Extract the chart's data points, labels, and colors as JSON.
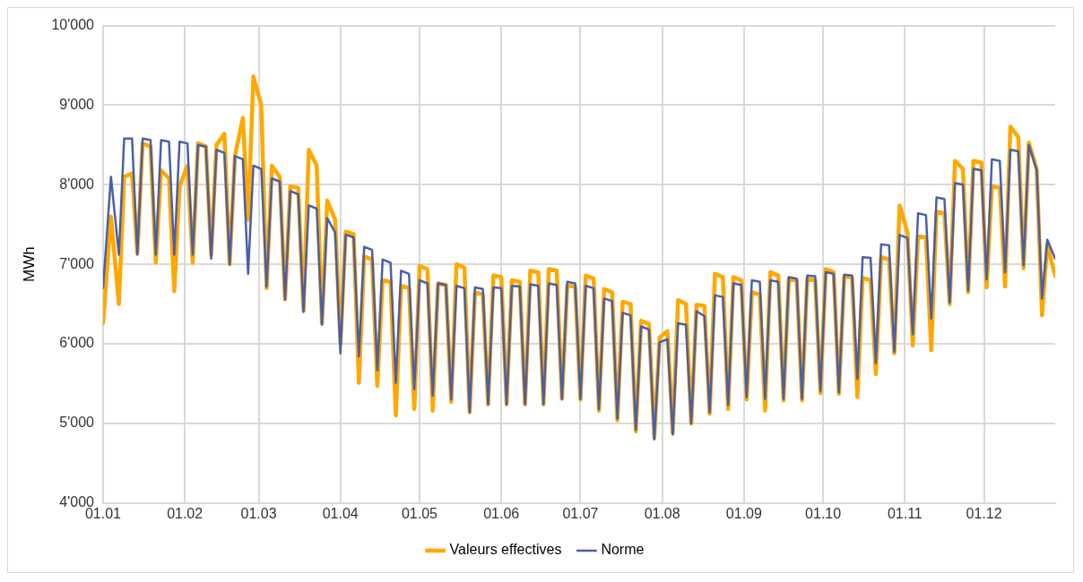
{
  "chart_data": {
    "type": "line",
    "ylabel": "MWh",
    "x": [
      "--01-01",
      "--01-04",
      "--01-07",
      "--01-09",
      "--01-12",
      "--01-14",
      "--01-16",
      "--01-19",
      "--01-21",
      "--01-23",
      "--01-26",
      "--01-28",
      "--01-30",
      "--02-02",
      "--02-04",
      "--02-06",
      "--02-09",
      "--02-11",
      "--02-13",
      "--02-16",
      "--02-18",
      "--02-20",
      "--02-23",
      "--02-25",
      "--02-27",
      "--03-02",
      "--03-04",
      "--03-06",
      "--03-09",
      "--03-11",
      "--03-13",
      "--03-16",
      "--03-18",
      "--03-20",
      "--03-23",
      "--03-25",
      "--03-27",
      "--03-30",
      "--04-01",
      "--04-03",
      "--04-06",
      "--04-08",
      "--04-10",
      "--04-13",
      "--04-15",
      "--04-17",
      "--04-20",
      "--04-22",
      "--04-24",
      "--04-27",
      "--04-29",
      "--05-01",
      "--05-04",
      "--05-06",
      "--05-08",
      "--05-11",
      "--05-13",
      "--05-15",
      "--05-18",
      "--05-20",
      "--05-22",
      "--05-25",
      "--05-27",
      "--05-29",
      "--06-01",
      "--06-03",
      "--06-05",
      "--06-08",
      "--06-10",
      "--06-12",
      "--06-15",
      "--06-17",
      "--06-19",
      "--06-22",
      "--06-24",
      "--06-26",
      "--06-29",
      "--07-01",
      "--07-03",
      "--07-06",
      "--07-08",
      "--07-10",
      "--07-13",
      "--07-15",
      "--07-17",
      "--07-20",
      "--07-22",
      "--07-24",
      "--07-27",
      "--07-29",
      "--07-31",
      "--08-03",
      "--08-05",
      "--08-07",
      "--08-10",
      "--08-12",
      "--08-14",
      "--08-17",
      "--08-19",
      "--08-21",
      "--08-24",
      "--08-26",
      "--08-28",
      "--08-31",
      "--09-02",
      "--09-04",
      "--09-07",
      "--09-09",
      "--09-11",
      "--09-14",
      "--09-16",
      "--09-18",
      "--09-21",
      "--09-23",
      "--09-25",
      "--09-28",
      "--09-30",
      "--10-02",
      "--10-05",
      "--10-07",
      "--10-09",
      "--10-12",
      "--10-14",
      "--10-16",
      "--10-19",
      "--10-21",
      "--10-23",
      "--10-26",
      "--10-28",
      "--10-30",
      "--11-02",
      "--11-04",
      "--11-06",
      "--11-09",
      "--11-11",
      "--11-13",
      "--11-16",
      "--11-18",
      "--11-20",
      "--11-23",
      "--11-25",
      "--11-27",
      "--11-30",
      "--12-02",
      "--12-04",
      "--12-07",
      "--12-09",
      "--12-11",
      "--12-14",
      "--12-16",
      "--12-18",
      "--12-21",
      "--12-23",
      "--12-25",
      "--12-28"
    ],
    "series": [
      {
        "name": "Valeurs effectives",
        "color": "#ffa800",
        "values": [
          6260,
          7600,
          6500,
          8100,
          8140,
          7140,
          8520,
          8480,
          7020,
          8180,
          8080,
          6660,
          7980,
          8240,
          7020,
          8520,
          8480,
          7120,
          8500,
          8640,
          7000,
          8360,
          8840,
          7560,
          9360,
          9000,
          6700,
          8240,
          8100,
          6560,
          7980,
          7960,
          6420,
          8440,
          8240,
          6260,
          7800,
          7560,
          6000,
          7410,
          7380,
          5510,
          7100,
          7060,
          5470,
          6800,
          6780,
          5100,
          6730,
          6700,
          5180,
          6980,
          6940,
          5160,
          6760,
          6740,
          5270,
          7000,
          6960,
          5140,
          6650,
          6620,
          5240,
          6860,
          6840,
          5240,
          6800,
          6780,
          5240,
          6920,
          6900,
          5240,
          6940,
          6920,
          5310,
          6730,
          6720,
          5300,
          6860,
          6820,
          5160,
          6690,
          6650,
          5040,
          6530,
          6500,
          4900,
          6290,
          6250,
          4820,
          6080,
          6160,
          4880,
          6550,
          6500,
          5000,
          6490,
          6480,
          5120,
          6880,
          6840,
          5180,
          6840,
          6800,
          5300,
          6650,
          6620,
          5160,
          6900,
          6860,
          5290,
          6820,
          6800,
          5290,
          6820,
          6800,
          5380,
          6940,
          6900,
          5370,
          6850,
          6830,
          5330,
          6830,
          6800,
          5620,
          7090,
          7060,
          5880,
          7740,
          7400,
          5980,
          7350,
          7340,
          5920,
          7660,
          7640,
          6500,
          8300,
          8200,
          6650,
          8300,
          8280,
          6710,
          7980,
          7960,
          6720,
          8730,
          8600,
          6950,
          8530,
          8200,
          6360,
          7250,
          6850
        ]
      },
      {
        "name": "Norme",
        "color": "#4a5fa8",
        "values": [
          6700,
          8100,
          7120,
          8580,
          8580,
          7120,
          8580,
          8560,
          7120,
          8560,
          8540,
          7120,
          8540,
          8520,
          7120,
          8500,
          8480,
          7070,
          8440,
          8400,
          7000,
          8360,
          8320,
          6880,
          8240,
          8200,
          6720,
          8080,
          8040,
          6560,
          7920,
          7880,
          6400,
          7740,
          7700,
          6240,
          7580,
          7400,
          5880,
          7370,
          7340,
          5840,
          7220,
          7180,
          5670,
          7060,
          7020,
          5510,
          6920,
          6880,
          5430,
          6800,
          6760,
          5350,
          6760,
          6740,
          5300,
          6730,
          6700,
          5140,
          6710,
          6690,
          5240,
          6710,
          6700,
          5240,
          6730,
          6720,
          5240,
          6750,
          6730,
          5240,
          6760,
          6740,
          5310,
          6780,
          6760,
          5310,
          6730,
          6700,
          5180,
          6570,
          6540,
          5060,
          6390,
          6360,
          4920,
          6220,
          6180,
          4800,
          6020,
          6060,
          4860,
          6260,
          6240,
          5000,
          6410,
          6350,
          5140,
          6610,
          6590,
          5230,
          6760,
          6740,
          5330,
          6800,
          6780,
          5310,
          6800,
          6780,
          5310,
          6840,
          6820,
          5310,
          6860,
          6850,
          5410,
          6900,
          6880,
          5390,
          6870,
          6860,
          5560,
          7090,
          7080,
          5760,
          7250,
          7240,
          5900,
          7370,
          7330,
          6120,
          7640,
          7620,
          6320,
          7840,
          7820,
          6520,
          8020,
          8000,
          6670,
          8200,
          8180,
          6810,
          8320,
          8300,
          6900,
          8440,
          8420,
          6990,
          8500,
          8180,
          6570,
          7310,
          7070
        ]
      }
    ],
    "xlim": [
      "--01-01",
      "--12-28"
    ],
    "xticks": [
      {
        "value": "--01-01",
        "label": "01.01"
      },
      {
        "value": "--02-01",
        "label": "01.02"
      },
      {
        "value": "--03-01",
        "label": "01.03"
      },
      {
        "value": "--04-01",
        "label": "01.04"
      },
      {
        "value": "--05-01",
        "label": "01.05"
      },
      {
        "value": "--06-01",
        "label": "01.06"
      },
      {
        "value": "--07-01",
        "label": "01.07"
      },
      {
        "value": "--08-01",
        "label": "01.08"
      },
      {
        "value": "--09-01",
        "label": "01.09"
      },
      {
        "value": "--10-01",
        "label": "01.10"
      },
      {
        "value": "--11-01",
        "label": "01.11"
      },
      {
        "value": "--12-01",
        "label": "01.12"
      }
    ],
    "ylim": [
      4000,
      10000
    ],
    "yticks": [
      {
        "value": 4000,
        "label": "4'000"
      },
      {
        "value": 5000,
        "label": "5'000"
      },
      {
        "value": 6000,
        "label": "6'000"
      },
      {
        "value": 7000,
        "label": "7'000"
      },
      {
        "value": 8000,
        "label": "8'000"
      },
      {
        "value": 9000,
        "label": "9'000"
      },
      {
        "value": 10000,
        "label": "10'000"
      }
    ],
    "grid": true,
    "legend": "bottom",
    "marker": "none",
    "line_style": "solid"
  }
}
